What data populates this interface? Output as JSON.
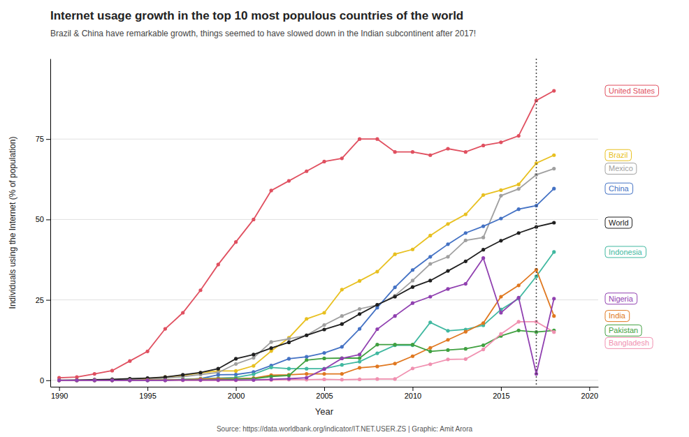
{
  "chart_data": {
    "type": "line",
    "title": "Internet usage growth in the top 10 most populous countries of the world",
    "subtitle": "Brazil & China have remarkable growth, things seemed to have slowed down in the Indian subcontinent after 2017!",
    "xlabel": "Year",
    "ylabel": "Individuals using the Internet (% of population)",
    "source": "Source: https://data.worldbank.org/indicator/IT.NET.USER.ZS | Graphic: Amit Arora",
    "vline": 2017,
    "xlim": [
      1989.5,
      2020.5
    ],
    "ylim": [
      -2,
      100
    ],
    "xticks": [
      1990,
      1995,
      2000,
      2005,
      2010,
      2015,
      2020
    ],
    "yticks": [
      0,
      25,
      50,
      75
    ],
    "grid": true,
    "marker": "circle",
    "x": [
      1990,
      1991,
      1992,
      1993,
      1994,
      1995,
      1996,
      1997,
      1998,
      1999,
      2000,
      2001,
      2002,
      2003,
      2004,
      2005,
      2006,
      2007,
      2008,
      2009,
      2010,
      2011,
      2012,
      2013,
      2014,
      2015,
      2016,
      2017,
      2018
    ],
    "series": [
      {
        "name": "United States",
        "color": "#e05060",
        "values": [
          0.8,
          1.0,
          2.0,
          3.0,
          6.0,
          9.0,
          16.0,
          21.0,
          28.0,
          36.0,
          43.0,
          50.0,
          59.0,
          62.0,
          65.0,
          68.0,
          69.0,
          75.0,
          75.0,
          71.0,
          71.0,
          70.0,
          72.0,
          71.0,
          73.0,
          74.0,
          76.0,
          87.0,
          90.0
        ]
      },
      {
        "name": "Brazil",
        "color": "#e8c020",
        "values": [
          0.0,
          0.0,
          0.0,
          0.1,
          0.2,
          0.5,
          1.0,
          1.5,
          2.3,
          2.9,
          2.9,
          4.5,
          9.1,
          13.2,
          19.1,
          21.0,
          28.2,
          30.9,
          33.8,
          39.2,
          40.7,
          45.0,
          48.6,
          51.6,
          57.6,
          59.1,
          60.9,
          67.5,
          70.0
        ]
      },
      {
        "name": "Mexico",
        "color": "#a0a0a0",
        "values": [
          0.0,
          0.0,
          0.0,
          0.1,
          0.2,
          0.3,
          0.7,
          1.1,
          1.8,
          2.4,
          5.1,
          7.0,
          11.9,
          12.9,
          14.0,
          17.2,
          20.0,
          22.2,
          23.4,
          26.3,
          31.0,
          36.2,
          38.4,
          43.5,
          44.4,
          57.4,
          59.5,
          63.9,
          65.8
        ]
      },
      {
        "name": "China",
        "color": "#4472c4",
        "values": [
          0.0,
          0.0,
          0.0,
          0.0,
          0.0,
          0.02,
          0.1,
          0.2,
          0.5,
          1.7,
          1.8,
          2.6,
          4.6,
          6.7,
          7.3,
          8.5,
          10.4,
          16.0,
          22.6,
          28.9,
          34.3,
          38.4,
          42.3,
          45.8,
          47.9,
          50.3,
          53.2,
          54.3,
          59.6
        ]
      },
      {
        "name": "World",
        "color": "#202020",
        "values": [
          0.05,
          0.1,
          0.2,
          0.3,
          0.5,
          0.7,
          1.0,
          1.7,
          2.4,
          3.6,
          6.7,
          8.0,
          10.0,
          11.8,
          14.0,
          15.8,
          17.5,
          20.6,
          23.5,
          26.0,
          29.0,
          31.0,
          34.0,
          37.0,
          40.6,
          43.4,
          45.8,
          47.7,
          49.0
        ]
      },
      {
        "name": "Indonesia",
        "color": "#40b8a0",
        "values": [
          0.0,
          0.0,
          0.0,
          0.0,
          0.0,
          0.0,
          0.1,
          0.3,
          0.5,
          0.7,
          0.9,
          1.9,
          4.0,
          3.6,
          3.6,
          3.6,
          4.8,
          5.8,
          8.4,
          10.9,
          10.9,
          18.0,
          15.4,
          15.8,
          17.1,
          22.0,
          25.4,
          32.3,
          39.9
        ]
      },
      {
        "name": "India",
        "color": "#e07820",
        "values": [
          0.0,
          0.0,
          0.0,
          0.0,
          0.0,
          0.1,
          0.1,
          0.2,
          0.4,
          0.5,
          0.5,
          0.7,
          1.6,
          1.7,
          2.0,
          2.0,
          2.0,
          3.9,
          4.3,
          5.2,
          7.5,
          10.1,
          12.6,
          15.1,
          17.8,
          26.0,
          29.5,
          34.4,
          20.0
        ]
      },
      {
        "name": "Pakistan",
        "color": "#40a040",
        "values": [
          0.0,
          0.0,
          0.0,
          0.0,
          0.0,
          0.0,
          0.0,
          0.1,
          0.1,
          0.2,
          0.4,
          0.5,
          1.2,
          1.5,
          6.3,
          6.8,
          6.9,
          6.9,
          11.1,
          11.1,
          11.1,
          9.0,
          9.4,
          9.8,
          10.9,
          13.8,
          15.5,
          15.0,
          15.5
        ]
      },
      {
        "name": "Bangladesh",
        "color": "#f090b0",
        "values": [
          0.0,
          0.0,
          0.0,
          0.0,
          0.0,
          0.0,
          0.0,
          0.0,
          0.0,
          0.0,
          0.0,
          0.1,
          0.1,
          0.2,
          0.2,
          0.3,
          0.2,
          0.3,
          0.4,
          0.4,
          3.7,
          5.0,
          6.5,
          6.6,
          9.6,
          14.4,
          18.2,
          18.2,
          15.0
        ]
      },
      {
        "name": "Nigeria",
        "color": "#9040b0",
        "values": [
          0.0,
          0.0,
          0.0,
          0.0,
          0.0,
          0.0,
          0.0,
          0.1,
          0.1,
          0.1,
          0.1,
          0.1,
          0.3,
          0.5,
          0.8,
          3.5,
          6.8,
          8.0,
          15.9,
          20.0,
          24.0,
          26.0,
          28.4,
          30.0,
          38.0,
          21.0,
          25.7,
          2.0,
          25.4
        ]
      }
    ]
  }
}
